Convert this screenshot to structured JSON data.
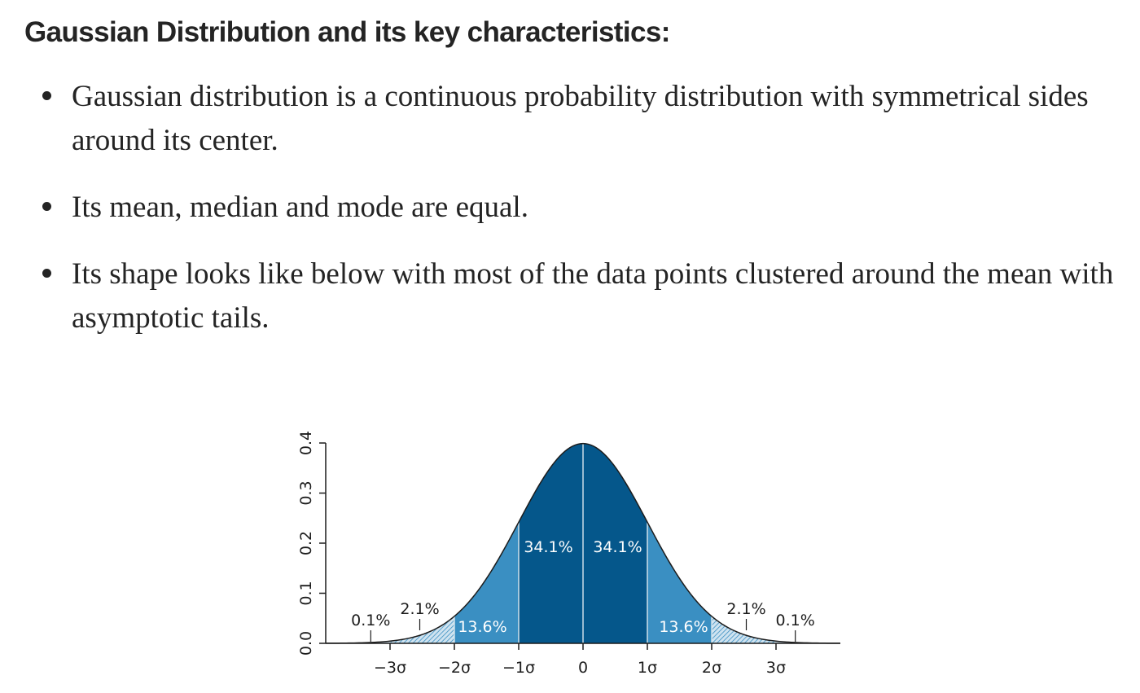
{
  "article": {
    "heading": "Gaussian Distribution and its key characteristics:",
    "bullets": [
      "Gaussian distribution is a continuous probability distribution with symmetrical sides around its center.",
      "Its mean, median and mode are equal.",
      "Its shape looks like below with most of the data points clustered around the mean with asymptotic tails."
    ]
  },
  "chart_data": {
    "type": "area",
    "title": "",
    "xlabel": "",
    "ylabel": "",
    "xlim": [
      -4.0,
      4.0
    ],
    "ylim": [
      0,
      0.4
    ],
    "x_ticks": [
      {
        "value": -3,
        "label": "−3σ"
      },
      {
        "value": -2,
        "label": "−2σ"
      },
      {
        "value": -1,
        "label": "−1σ"
      },
      {
        "value": 0,
        "label": "0"
      },
      {
        "value": 1,
        "label": "1σ"
      },
      {
        "value": 2,
        "label": "2σ"
      },
      {
        "value": 3,
        "label": "3σ"
      }
    ],
    "y_ticks": [
      {
        "value": 0.0,
        "label": "0.0"
      },
      {
        "value": 0.1,
        "label": "0.1"
      },
      {
        "value": 0.2,
        "label": "0.2"
      },
      {
        "value": 0.3,
        "label": "0.3"
      },
      {
        "value": 0.4,
        "label": "0.4"
      }
    ],
    "regions": [
      {
        "from": -3,
        "to": -2,
        "percent": "2.1%",
        "color": "#7fb6d8"
      },
      {
        "from": -2,
        "to": -1,
        "percent": "13.6%",
        "color": "#3a8fc2"
      },
      {
        "from": -1,
        "to": 0,
        "percent": "34.1%",
        "color": "#05578b"
      },
      {
        "from": 0,
        "to": 1,
        "percent": "34.1%",
        "color": "#05578b"
      },
      {
        "from": 1,
        "to": 2,
        "percent": "13.6%",
        "color": "#3a8fc2"
      },
      {
        "from": 2,
        "to": 3,
        "percent": "2.1%",
        "color": "#7fb6d8"
      }
    ],
    "tails": [
      {
        "at": -3.3,
        "percent": "0.1%"
      },
      {
        "at": 3.3,
        "percent": "0.1%"
      }
    ],
    "grid": false,
    "legend": "none"
  }
}
